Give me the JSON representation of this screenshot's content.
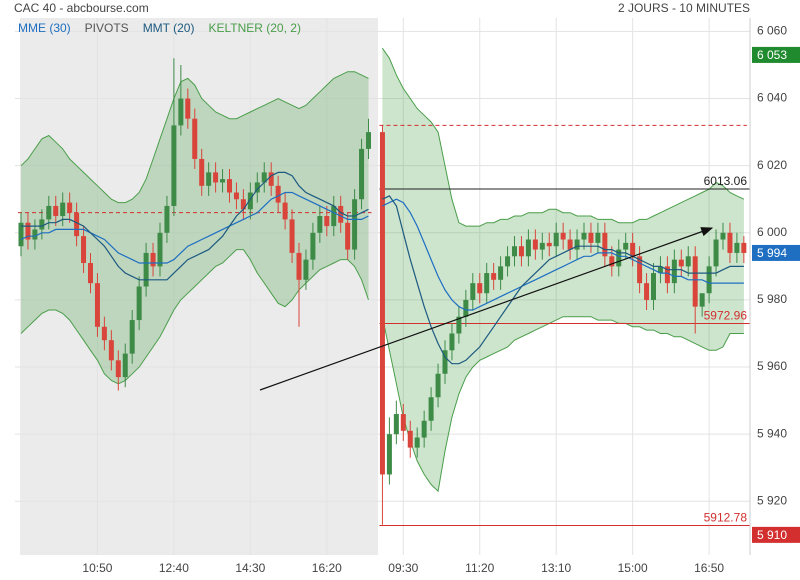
{
  "chart_data": {
    "type": "candlestick",
    "title": "CAC 40 - abcbourse.com",
    "subtitle": "2 JOURS - 10 MINUTES",
    "categories": [
      null,
      null,
      null,
      null,
      null,
      null,
      null,
      null,
      null,
      null,
      null,
      "10:50",
      null,
      null,
      null,
      null,
      null,
      null,
      null,
      null,
      null,
      null,
      "12:40",
      null,
      null,
      null,
      null,
      null,
      null,
      null,
      null,
      null,
      null,
      "14:30",
      null,
      null,
      null,
      null,
      null,
      null,
      null,
      null,
      null,
      null,
      "16:20",
      null,
      null,
      null,
      null,
      null,
      null,
      null,
      null,
      null,
      "09:30",
      null,
      null,
      null,
      null,
      null,
      null,
      null,
      null,
      null,
      null,
      "11:20",
      null,
      null,
      null,
      null,
      null,
      null,
      null,
      null,
      null,
      null,
      "13:10",
      null,
      null,
      null,
      null,
      null,
      null,
      null,
      null,
      null,
      null,
      "15:00",
      null,
      null,
      null,
      null,
      null,
      null,
      null,
      null,
      null,
      null,
      "16:50",
      null,
      null,
      null,
      null,
      null
    ],
    "open": [
      5996,
      6003,
      5998,
      6001,
      6004,
      6008,
      6005,
      6009,
      6006,
      5999,
      5991,
      5985,
      5972,
      5968,
      5962,
      5957,
      5964,
      5974,
      5984,
      5994,
      5990,
      6000,
      6008,
      6032,
      6040,
      6034,
      6022,
      6014,
      6018,
      6015,
      6016,
      6012,
      6010,
      6007,
      6012,
      6015,
      6018,
      6014,
      6009,
      6004,
      5994,
      5986,
      5992,
      6000,
      6005,
      6002,
      6008,
      6003,
      5995,
      6010,
      6025,
      6030,
      5928,
      5940,
      5946,
      5941,
      5936,
      5939,
      5944,
      5951,
      5958,
      5965,
      5970,
      5975,
      5980,
      5985,
      5982,
      5988,
      5986,
      5990,
      5993,
      5996,
      5993,
      5998,
      5995,
      5997,
      5996,
      6000,
      5998,
      5995,
      5998,
      6000,
      5997,
      6000,
      5993,
      5990,
      5995,
      5997,
      5993,
      5985,
      5980,
      5988,
      5990,
      5985,
      5992,
      5990,
      5993,
      5978,
      5982,
      5990,
      5998,
      6000,
      5994,
      5997
    ],
    "high": [
      6006,
      6006,
      6004,
      6007,
      6011,
      6011,
      6012,
      6012,
      6009,
      6002,
      5994,
      5988,
      5975,
      5971,
      5965,
      5967,
      5977,
      5987,
      5997,
      5997,
      6003,
      6011,
      6052,
      6050,
      6043,
      6037,
      6025,
      6021,
      6021,
      6019,
      6019,
      6015,
      6013,
      6015,
      6018,
      6021,
      6021,
      6017,
      6012,
      6007,
      5997,
      5995,
      6003,
      6008,
      6008,
      6011,
      6011,
      6006,
      6013,
      6028,
      6034,
      6032,
      5945,
      5950,
      5949,
      5944,
      5942,
      5947,
      5954,
      5961,
      5968,
      5973,
      5978,
      5983,
      5988,
      5988,
      5991,
      5991,
      5993,
      5996,
      5999,
      5999,
      6001,
      6001,
      6000,
      6000,
      6003,
      6003,
      6001,
      6001,
      6003,
      6003,
      6003,
      6003,
      5996,
      5998,
      6000,
      6000,
      5996,
      5988,
      5991,
      5993,
      5993,
      5995,
      5995,
      5996,
      5996,
      5981,
      5993,
      6001,
      6003,
      6003,
      6000,
      5999
    ],
    "low": [
      5993,
      5995,
      5995,
      5998,
      6001,
      6002,
      6002,
      6003,
      5996,
      5988,
      5982,
      5969,
      5965,
      5959,
      5953,
      5954,
      5961,
      5971,
      5981,
      5987,
      5987,
      5997,
      6005,
      6029,
      6031,
      6019,
      6011,
      6011,
      6012,
      6012,
      6009,
      6007,
      6004,
      6004,
      6009,
      6012,
      6011,
      6006,
      6001,
      5991,
      5972,
      5983,
      5989,
      5997,
      5999,
      5999,
      6000,
      5992,
      5992,
      6007,
      6022,
      5913,
      5925,
      5937,
      5938,
      5933,
      5933,
      5936,
      5941,
      5948,
      5955,
      5962,
      5967,
      5972,
      5977,
      5979,
      5979,
      5983,
      5983,
      5987,
      5990,
      5990,
      5990,
      5992,
      5992,
      5993,
      5993,
      5995,
      5992,
      5992,
      5995,
      5994,
      5994,
      5990,
      5987,
      5987,
      5992,
      5990,
      5982,
      5977,
      5977,
      5985,
      5982,
      5982,
      5987,
      5987,
      5970,
      5975,
      5979,
      5987,
      5995,
      5991,
      5991,
      5991
    ],
    "close": [
      6003,
      5998,
      6001,
      6004,
      6008,
      6005,
      6009,
      6006,
      5999,
      5991,
      5985,
      5972,
      5968,
      5962,
      5957,
      5964,
      5974,
      5984,
      5994,
      5990,
      6000,
      6008,
      6032,
      6040,
      6034,
      6022,
      6014,
      6018,
      6015,
      6016,
      6012,
      6010,
      6007,
      6012,
      6015,
      6018,
      6014,
      6009,
      6004,
      5994,
      5986,
      5992,
      6000,
      6005,
      6002,
      6008,
      6003,
      5995,
      6010,
      6025,
      6030,
      5928,
      5940,
      5946,
      5941,
      5936,
      5939,
      5944,
      5951,
      5958,
      5965,
      5970,
      5975,
      5980,
      5985,
      5982,
      5988,
      5986,
      5990,
      5993,
      5996,
      5993,
      5998,
      5995,
      5997,
      5996,
      6000,
      5998,
      5995,
      5998,
      6000,
      5997,
      6000,
      5993,
      5990,
      5995,
      5997,
      5993,
      5985,
      5980,
      5988,
      5990,
      5985,
      5992,
      5990,
      5993,
      5978,
      5982,
      5990,
      5998,
      6000,
      5994,
      5997,
      5994
    ],
    "up_color": "#3d8b47",
    "down_color": "#d9453a",
    "series": [
      {
        "name": "MME (30)",
        "color": "#1e6fc2",
        "values": [
          5998,
          5999,
          5999,
          6000,
          6000,
          6001,
          6001,
          6001,
          6001,
          6001,
          6000,
          5999,
          5998,
          5996,
          5994,
          5993,
          5992,
          5991,
          5991,
          5991,
          5991,
          5991,
          5992,
          5994,
          5996,
          5997,
          5998,
          5999,
          6000,
          6001,
          6002,
          6003,
          6004,
          6005,
          6006,
          6008,
          6010,
          6011,
          6012,
          6012,
          6011,
          6010,
          6009,
          6008,
          6007,
          6006,
          6005,
          6004,
          6004,
          6004,
          6005,
          6008,
          6009,
          6010,
          6009,
          6006,
          6002,
          5997,
          5992,
          5987,
          5983,
          5980,
          5978,
          5977,
          5977,
          5978,
          5979,
          5980,
          5981,
          5982,
          5983,
          5984,
          5985,
          5986,
          5987,
          5988,
          5989,
          5990,
          5991,
          5992,
          5993,
          5993,
          5994,
          5994,
          5994,
          5993,
          5993,
          5992,
          5991,
          5990,
          5989,
          5988,
          5988,
          5987,
          5987,
          5986,
          5986,
          5986,
          5985,
          5985,
          5985,
          5985,
          5985,
          5985
        ]
      },
      {
        "name": "PIVOTS",
        "color": "#d32f2f",
        "levels": [
          6006,
          6032
        ]
      },
      {
        "name": "MMT (20)",
        "color": "#1c5a80",
        "values": [
          6002,
          6002,
          6002,
          6002,
          6003,
          6003,
          6004,
          6004,
          6003,
          6002,
          6000,
          5998,
          5996,
          5993,
          5990,
          5988,
          5987,
          5986,
          5986,
          5986,
          5986,
          5986,
          5988,
          5990,
          5992,
          5993,
          5994,
          5995,
          5997,
          5999,
          6002,
          6005,
          6007,
          6010,
          6013,
          6015,
          6017,
          6018,
          6018,
          6017,
          6014,
          6012,
          6011,
          6010,
          6009,
          6008,
          6006,
          6005,
          6005,
          6006,
          6007,
          6010,
          6011,
          6008,
          6000,
          5992,
          5985,
          5978,
          5972,
          5967,
          5963,
          5961,
          5961,
          5962,
          5964,
          5966,
          5969,
          5972,
          5975,
          5978,
          5981,
          5984,
          5986,
          5988,
          5990,
          5992,
          5993,
          5994,
          5995,
          5996,
          5996,
          5996,
          5996,
          5995,
          5995,
          5994,
          5994,
          5993,
          5992,
          5991,
          5990,
          5990,
          5989,
          5989,
          5989,
          5988,
          5988,
          5988,
          5988,
          5988,
          5989,
          5990,
          5990,
          5990
        ]
      },
      {
        "name": "KELTNER (20, 2)",
        "color": "#4a9e4a",
        "upper": [
          6020,
          6022,
          6025,
          6028,
          6029,
          6027,
          6025,
          6022,
          6020,
          6018,
          6016,
          6014,
          6012,
          6010,
          6009,
          6009,
          6010,
          6012,
          6016,
          6022,
          6028,
          6034,
          6040,
          6045,
          6046,
          6044,
          6040,
          6038,
          6036,
          6035,
          6034,
          6034,
          6035,
          6036,
          6037,
          6038,
          6039,
          6040,
          6039,
          6038,
          6037,
          6038,
          6040,
          6042,
          6044,
          6046,
          6047,
          6048,
          6048,
          6047,
          6046,
          6055,
          6052,
          6047,
          6043,
          6040,
          6037,
          6035,
          6033,
          6030,
          6020,
          6010,
          6003,
          6002,
          6002,
          6002,
          6003,
          6003,
          6004,
          6004,
          6005,
          6005,
          6006,
          6006,
          6006,
          6007,
          6007,
          6006,
          6006,
          6005,
          6005,
          6005,
          6004,
          6004,
          6004,
          6003,
          6003,
          6003,
          6004,
          6004,
          6005,
          6006,
          6007,
          6008,
          6009,
          6010,
          6011,
          6012,
          6013,
          6015,
          6014,
          6012,
          6011,
          6010
        ],
        "lower": [
          5970,
          5972,
          5974,
          5976,
          5977,
          5977,
          5976,
          5974,
          5971,
          5968,
          5965,
          5962,
          5958,
          5956,
          5955,
          5956,
          5958,
          5960,
          5963,
          5966,
          5969,
          5973,
          5977,
          5980,
          5982,
          5984,
          5986,
          5988,
          5990,
          5991,
          5993,
          5995,
          5995,
          5992,
          5988,
          5985,
          5982,
          5979,
          5978,
          5980,
          5983,
          5985,
          5987,
          5989,
          5990,
          5991,
          5992,
          5992,
          5990,
          5986,
          5980,
          5975,
          5965,
          5955,
          5945,
          5938,
          5932,
          5928,
          5925,
          5923,
          5935,
          5945,
          5952,
          5957,
          5960,
          5962,
          5963,
          5964,
          5965,
          5966,
          5968,
          5969,
          5970,
          5971,
          5972,
          5973,
          5974,
          5975,
          5975,
          5975,
          5975,
          5975,
          5974,
          5974,
          5974,
          5973,
          5973,
          5972,
          5972,
          5971,
          5971,
          5970,
          5970,
          5969,
          5969,
          5968,
          5967,
          5966,
          5965,
          5965,
          5966,
          5970,
          5970,
          5970
        ]
      }
    ],
    "price_lines": [
      {
        "value": 6013.06,
        "color": "#222222"
      },
      {
        "value": 5972.96,
        "color": "#d32f2f"
      },
      {
        "value": 5912.78,
        "color": "#d32f2f"
      }
    ],
    "price_tags": [
      {
        "value": 6053,
        "label": "6 053",
        "color": "#1f8a2e"
      },
      {
        "value": 5994,
        "label": "5 994",
        "color": "#1e6fc2"
      },
      {
        "value": 5910,
        "label": "5 910",
        "color": "#d32f2f"
      }
    ],
    "ylim": [
      5904,
      6064
    ],
    "yticks": [
      {
        "value": 5920,
        "label": "5 920"
      },
      {
        "value": 5940,
        "label": "5 940"
      },
      {
        "value": 5960,
        "label": "5 960"
      },
      {
        "value": 5980,
        "label": "5 980"
      },
      {
        "value": 6000,
        "label": "6 000"
      },
      {
        "value": 6020,
        "label": "6 020"
      },
      {
        "value": 6040,
        "label": "6 040"
      },
      {
        "value": 6060,
        "label": "6 060"
      }
    ],
    "grid": true
  }
}
